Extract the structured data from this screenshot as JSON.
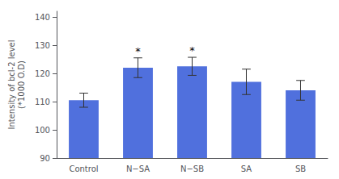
{
  "chart_data": {
    "type": "bar",
    "ylabel": "Intensity of bcl-2 level\n(*1000 O.D)",
    "categories": [
      "Control",
      "N−SA",
      "N−SB",
      "SA",
      "SB"
    ],
    "values": [
      110.5,
      122.0,
      122.5,
      117.0,
      114.0
    ],
    "errors": [
      2.5,
      3.5,
      3.2,
      4.5,
      3.5
    ],
    "annotations": [
      {
        "category": "N−SA",
        "text": "*"
      },
      {
        "category": "N−SB",
        "text": "*"
      }
    ],
    "ylim": [
      90,
      142
    ],
    "yticks": [
      90,
      100,
      110,
      120,
      130,
      140
    ],
    "grid": false
  }
}
